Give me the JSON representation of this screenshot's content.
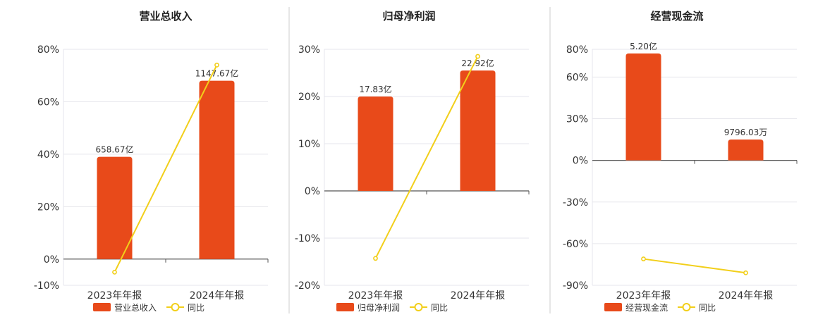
{
  "colors": {
    "bar": "#E84A1A",
    "line": "#F2CF1A",
    "grid": "#E6E6EC",
    "axis": "#555555",
    "divider": "#CCCCCC"
  },
  "chart_data": [
    {
      "type": "bar",
      "title": "营业总收入",
      "categories": [
        "2023年年报",
        "2024年年报"
      ],
      "series": [
        {
          "name": "营业总收入",
          "type": "bar",
          "values": [
            39,
            68
          ],
          "labels": [
            "658.67亿",
            "1147.67亿"
          ]
        },
        {
          "name": "同比",
          "type": "line",
          "values": [
            -5,
            74
          ]
        }
      ],
      "yaxis": {
        "min": -10,
        "max": 80,
        "ticks": [
          -10,
          0,
          20,
          40,
          60,
          80
        ],
        "suffix": "%"
      },
      "grid": true,
      "legend": "bottom-center"
    },
    {
      "type": "bar",
      "title": "归母净利润",
      "categories": [
        "2023年年报",
        "2024年年报"
      ],
      "series": [
        {
          "name": "归母净利润",
          "type": "bar",
          "values": [
            20,
            25.5
          ],
          "labels": [
            "17.83亿",
            "22.92亿"
          ]
        },
        {
          "name": "同比",
          "type": "line",
          "values": [
            -14.3,
            28.5
          ]
        }
      ],
      "yaxis": {
        "min": -20,
        "max": 30,
        "ticks": [
          -20,
          -10,
          0,
          10,
          20,
          30
        ],
        "suffix": "%"
      },
      "grid": true,
      "legend": "bottom-center"
    },
    {
      "type": "bar",
      "title": "经营现金流",
      "categories": [
        "2023年年报",
        "2024年年报"
      ],
      "series": [
        {
          "name": "经营现金流",
          "type": "bar",
          "values": [
            77,
            15
          ],
          "labels": [
            "5.20亿",
            "9796.03万"
          ]
        },
        {
          "name": "同比",
          "type": "line",
          "values": [
            -71,
            -81
          ]
        }
      ],
      "yaxis": {
        "min": -90,
        "max": 80,
        "ticks": [
          -90,
          -60,
          -30,
          0,
          30,
          60,
          80
        ],
        "suffix": "%"
      },
      "grid": true,
      "legend": "bottom-center"
    }
  ]
}
